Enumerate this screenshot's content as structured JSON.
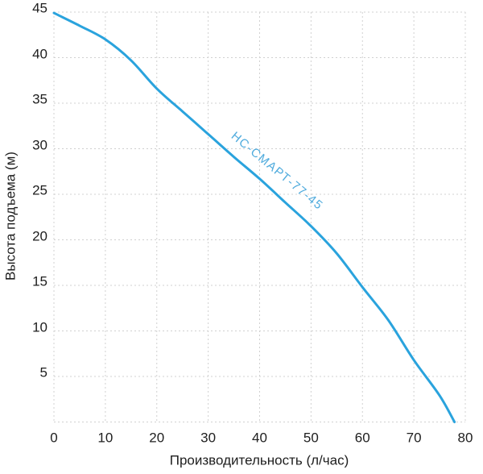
{
  "chart_data": {
    "type": "line",
    "title": "",
    "xlabel": "Производительность (л/час)",
    "ylabel": "Высота подъема (м)",
    "xlim": [
      0,
      80
    ],
    "ylim": [
      0,
      45
    ],
    "x_ticks": [
      0,
      10,
      20,
      30,
      40,
      50,
      60,
      70,
      80
    ],
    "y_ticks": [
      5,
      10,
      15,
      20,
      25,
      30,
      35,
      40,
      45
    ],
    "grid": "dashed, every 10 l/h vertical and 5 m horizontal",
    "legend_position": "label along curve",
    "series": [
      {
        "name": "НС-СМАРТ-77-45",
        "points": [
          [
            0,
            44.9
          ],
          [
            5,
            43.5
          ],
          [
            10,
            42.0
          ],
          [
            15,
            39.7
          ],
          [
            20,
            36.6
          ],
          [
            25,
            34.1
          ],
          [
            30,
            31.6
          ],
          [
            35,
            29.1
          ],
          [
            40,
            26.7
          ],
          [
            45,
            24.1
          ],
          [
            50,
            21.5
          ],
          [
            55,
            18.5
          ],
          [
            60,
            14.8
          ],
          [
            65,
            11.2
          ],
          [
            70,
            6.8
          ],
          [
            75,
            2.9
          ],
          [
            77.9,
            0
          ]
        ]
      }
    ],
    "colors": {
      "curve": "#2aa3dd",
      "curve_label": "#4fabdd",
      "grid_line": "#d0d0d0",
      "tick_text": "#1e1e1e",
      "background": "#ffffff"
    }
  }
}
